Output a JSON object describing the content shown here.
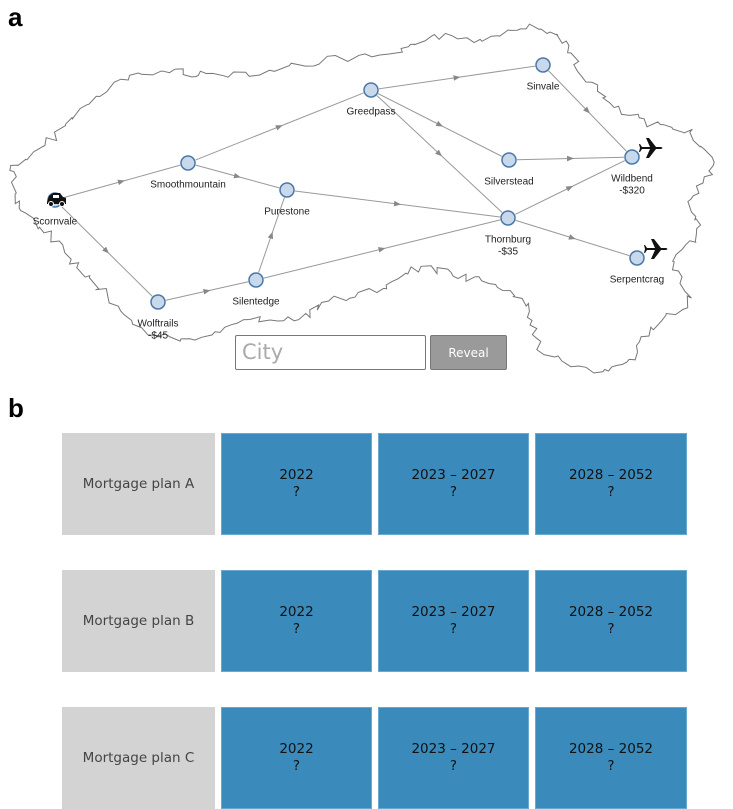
{
  "panel_a": {
    "label": "a",
    "nodes": [
      {
        "label": "Scornvale"
      },
      {
        "label": "Smoothmountain"
      },
      {
        "label": "Purestone"
      },
      {
        "label": "Greedpass"
      },
      {
        "label": "Sinvale"
      },
      {
        "label": "Silverstead"
      },
      {
        "label": "Wildbend",
        "cost": "-$320"
      },
      {
        "label": "Thornburg",
        "cost": "-$35"
      },
      {
        "label": "Serpentcrag"
      },
      {
        "label": "Silentedge"
      },
      {
        "label": "Wolftrails",
        "cost": "-$45"
      }
    ],
    "input_placeholder": "City",
    "button": "Reveal"
  },
  "panel_b": {
    "label": "b",
    "plans": [
      {
        "name": "Mortgage plan A",
        "cells": [
          {
            "period": "2022",
            "value": "?"
          },
          {
            "period": "2023 – 2027",
            "value": "?"
          },
          {
            "period": "2028 – 2052",
            "value": "?"
          }
        ]
      },
      {
        "name": "Mortgage plan B",
        "cells": [
          {
            "period": "2022",
            "value": "?"
          },
          {
            "period": "2023 – 2027",
            "value": "?"
          },
          {
            "period": "2028 – 2052",
            "value": "?"
          }
        ]
      },
      {
        "name": "Mortgage plan C",
        "cells": [
          {
            "period": "2022",
            "value": "?"
          },
          {
            "period": "2023 – 2027",
            "value": "?"
          },
          {
            "period": "2028 – 2052",
            "value": "?"
          }
        ]
      }
    ]
  }
}
